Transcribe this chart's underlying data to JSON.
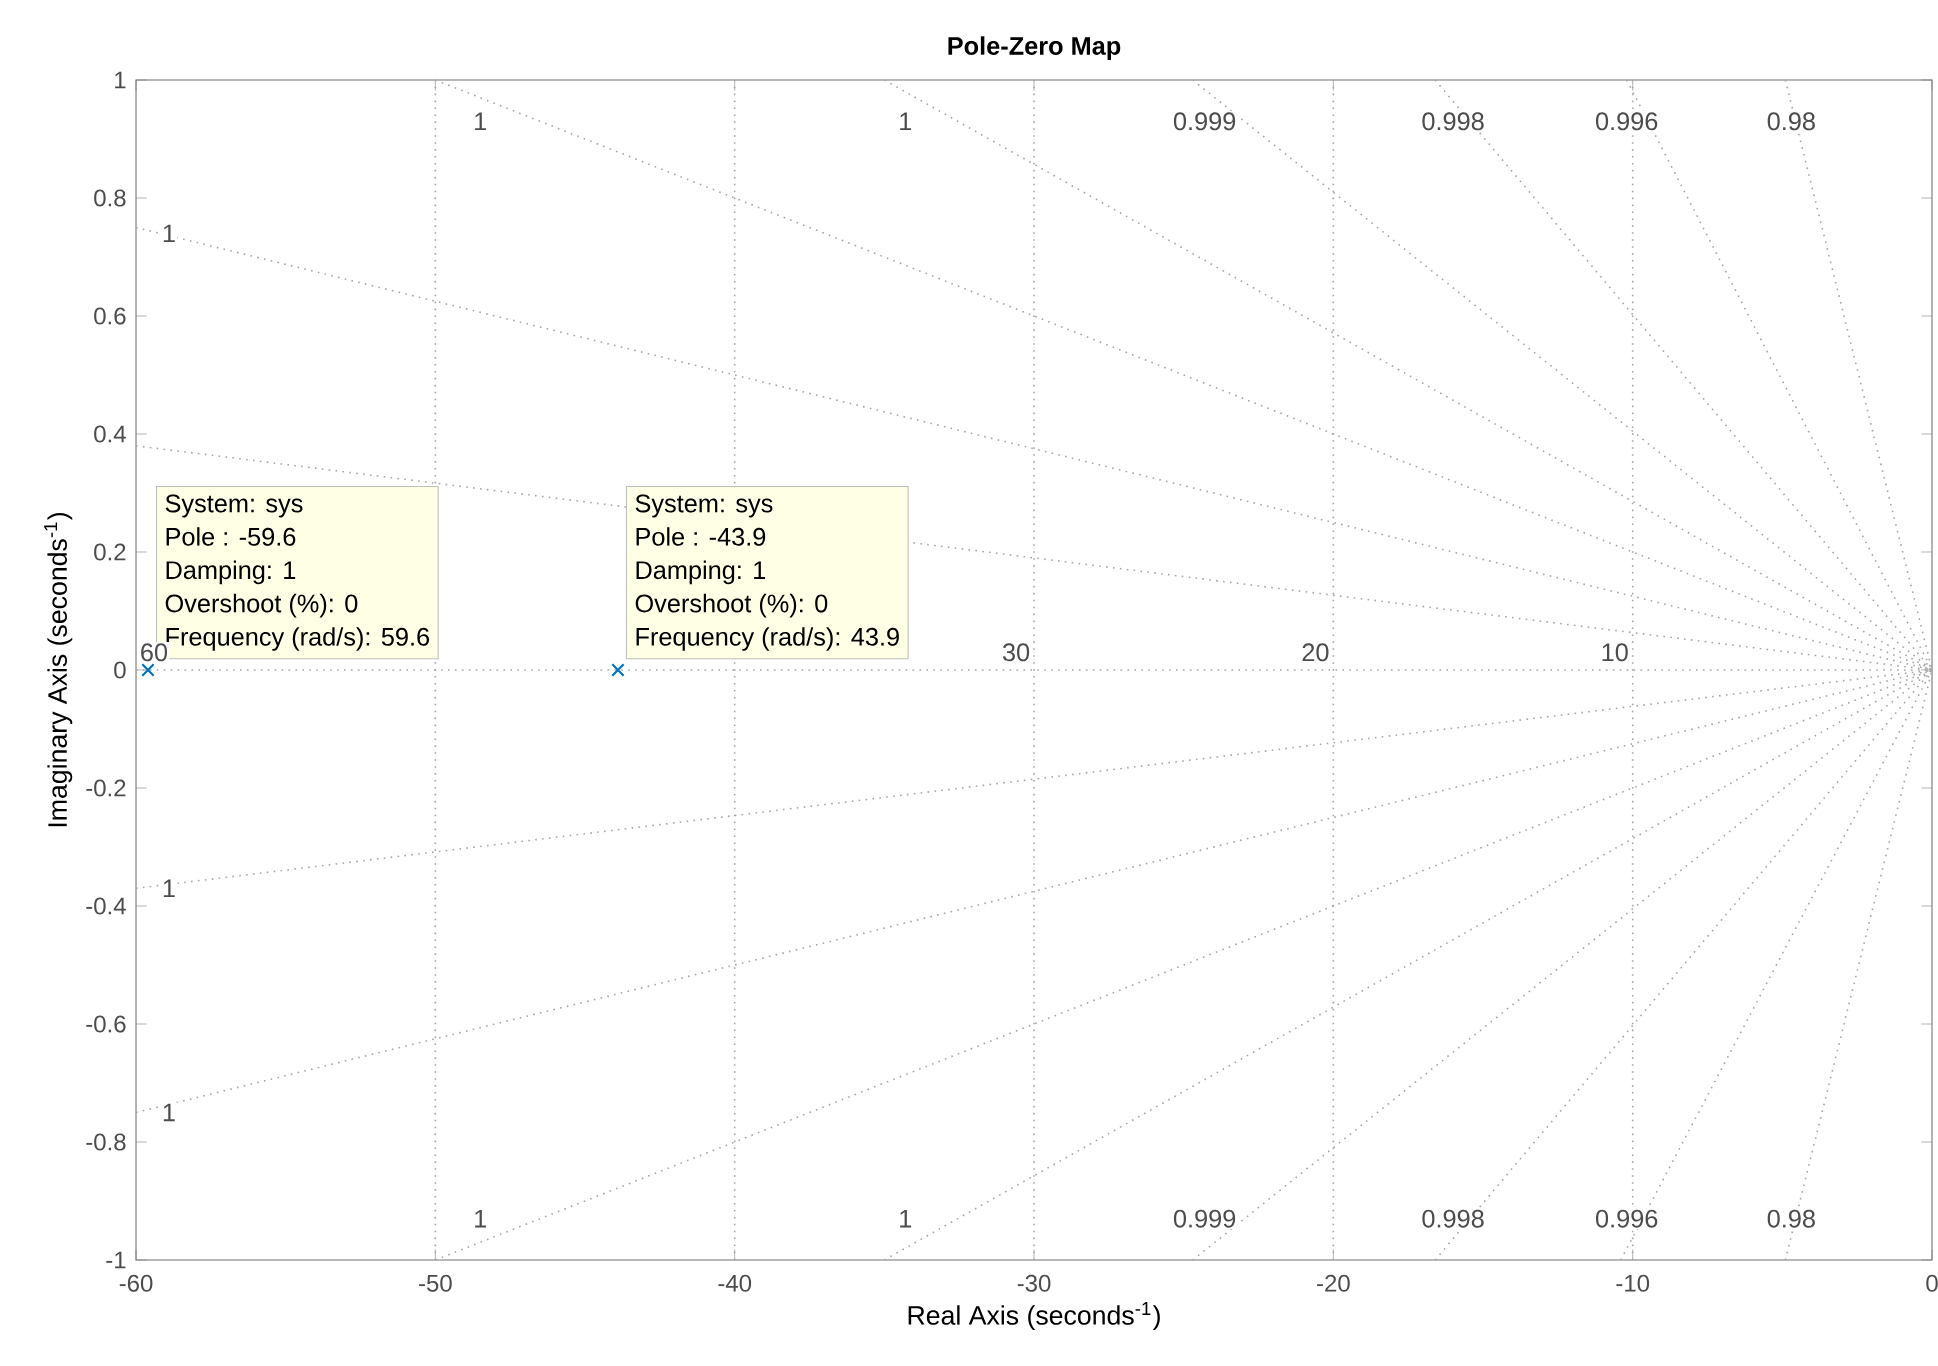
{
  "chart_data": {
    "type": "scatter",
    "title": "Pole-Zero Map",
    "xlabel": "Real Axis (seconds$^{-1}$)",
    "ylabel": "Imaginary Axis (seconds$^{-1}$)",
    "xlim": [
      -60,
      0
    ],
    "ylim": [
      -1,
      1
    ],
    "xticks": [
      -60,
      -50,
      -40,
      -30,
      -20,
      -10,
      0
    ],
    "yticks": [
      -1,
      -0.8,
      -0.6,
      -0.4,
      -0.2,
      0,
      0.2,
      0.4,
      0.6,
      0.8,
      1
    ],
    "series": [
      {
        "type": "line",
        "line_style": "dotted",
        "color": "#a6a6a6",
        "x": [
          -60,
          0
        ],
        "values": [
          0.75,
          0
        ]
      },
      {
        "type": "line",
        "line_style": "dotted",
        "color": "#a6a6a6",
        "x": [
          -60,
          0
        ],
        "values": [
          0.38,
          0
        ]
      },
      {
        "type": "line",
        "line_style": "dotted",
        "color": "#a6a6a6",
        "x": [
          -50,
          0
        ],
        "values": [
          1,
          0
        ]
      },
      {
        "type": "line",
        "line_style": "dotted",
        "color": "#a6a6a6",
        "x": [
          -35,
          0
        ],
        "values": [
          1,
          0
        ]
      },
      {
        "type": "line",
        "line_style": "dotted",
        "color": "#a6a6a6",
        "x": [
          -24.7,
          0
        ],
        "values": [
          1,
          0
        ]
      },
      {
        "type": "line",
        "line_style": "dotted",
        "color": "#a6a6a6",
        "x": [
          -16.6,
          0
        ],
        "values": [
          1,
          0
        ]
      },
      {
        "type": "line",
        "line_style": "dotted",
        "color": "#a6a6a6",
        "x": [
          -10.2,
          0
        ],
        "values": [
          1,
          0
        ]
      },
      {
        "type": "line",
        "line_style": "dotted",
        "color": "#a6a6a6",
        "x": [
          -4.9,
          0
        ],
        "values": [
          1,
          0
        ]
      },
      {
        "type": "line",
        "line_style": "dotted",
        "color": "#a6a6a6",
        "x": [
          -60,
          0
        ],
        "values": [
          -0.75,
          0
        ]
      },
      {
        "type": "line",
        "line_style": "dotted",
        "color": "#a6a6a6",
        "x": [
          -60,
          0
        ],
        "values": [
          -0.37,
          0
        ]
      },
      {
        "type": "line",
        "line_style": "dotted",
        "color": "#a6a6a6",
        "x": [
          -50,
          0
        ],
        "values": [
          -1,
          0
        ]
      },
      {
        "type": "line",
        "line_style": "dotted",
        "color": "#a6a6a6",
        "x": [
          -35,
          0
        ],
        "values": [
          -1,
          0
        ]
      },
      {
        "type": "line",
        "line_style": "dotted",
        "color": "#a6a6a6",
        "x": [
          -24.7,
          0
        ],
        "values": [
          -1,
          0
        ]
      },
      {
        "type": "line",
        "line_style": "dotted",
        "color": "#a6a6a6",
        "x": [
          -16.6,
          0
        ],
        "values": [
          -1,
          0
        ]
      },
      {
        "type": "line",
        "line_style": "dotted",
        "color": "#a6a6a6",
        "x": [
          -10.4,
          0
        ],
        "values": [
          -1,
          0
        ]
      },
      {
        "type": "line",
        "line_style": "dotted",
        "color": "#a6a6a6",
        "x": [
          -4.9,
          0
        ],
        "values": [
          -1,
          0
        ]
      },
      {
        "color": "#0072bd",
        "marker": "cross",
        "x": [
          -59.6,
          -43.9
        ],
        "values": [
          0,
          0
        ]
      }
    ],
    "ref_lines": [
      {
        "axis": "y",
        "value": 0,
        "color": "#a6a6a6",
        "line_style": "dotted"
      },
      {
        "axis": "x",
        "value": -50,
        "color": "#a6a6a6",
        "line_style": "dotted"
      },
      {
        "axis": "x",
        "value": -40,
        "color": "#a6a6a6",
        "line_style": "dotted"
      },
      {
        "axis": "x",
        "value": -30,
        "color": "#a6a6a6",
        "line_style": "dotted"
      },
      {
        "axis": "x",
        "value": -20,
        "color": "#a6a6a6",
        "line_style": "dotted"
      },
      {
        "axis": "x",
        "value": -10,
        "color": "#a6a6a6",
        "line_style": "dotted"
      }
    ],
    "annotations": [
      "System: sys",
      "Pole : -59.6",
      "Damping: 1",
      "Overshoot (%): 0",
      "Frequency (rad/s): 59.6",
      "System: sys",
      "Pole : -43.9",
      "Damping: 1",
      "Overshoot (%): 0",
      "Frequency (rad/s): 43.9",
      {
        "text": "60",
        "x": -59.4,
        "y": 0.03
      },
      {
        "text": "30",
        "x": -30.6,
        "y": 0.03
      },
      {
        "text": "20",
        "x": -20.6,
        "y": 0.03
      },
      {
        "text": "10",
        "x": -10.6,
        "y": 0.03
      },
      {
        "text": "1",
        "x": -48.5,
        "y": 0.93
      },
      {
        "text": "1",
        "x": -34.3,
        "y": 0.93
      },
      {
        "text": "0.999",
        "x": -24.3,
        "y": 0.93
      },
      {
        "text": "0.998",
        "x": -16,
        "y": 0.93
      },
      {
        "text": "0.996",
        "x": -10.2,
        "y": 0.93
      },
      {
        "text": "0.98",
        "x": -4.7,
        "y": 0.93
      },
      {
        "text": "1",
        "x": -58.9,
        "y": 0.74
      },
      {
        "text": "1",
        "x": -58.9,
        "y": -0.37
      },
      {
        "text": "1",
        "x": -58.9,
        "y": -0.75
      },
      {
        "text": "1",
        "x": -48.5,
        "y": -0.93
      },
      {
        "text": "1",
        "x": -34.3,
        "y": -0.93
      },
      {
        "text": "0.999",
        "x": -24.3,
        "y": -0.93
      },
      {
        "text": "0.998",
        "x": -16,
        "y": -0.93
      },
      {
        "text": "0.996",
        "x": -10.2,
        "y": -0.93
      },
      {
        "text": "0.98",
        "x": -4.7,
        "y": -0.93
      }
    ]
  }
}
